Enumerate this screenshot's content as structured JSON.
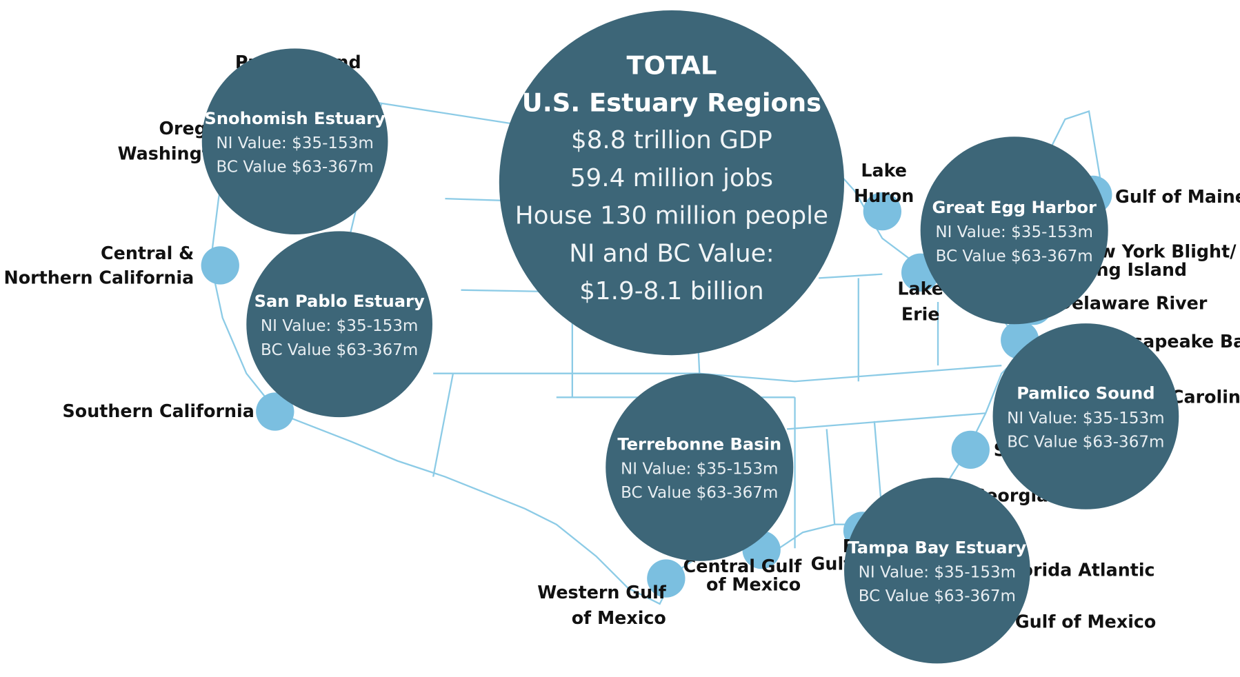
{
  "total": {
    "title": "TOTAL",
    "subtitle": "U.S. Estuary Regions",
    "lines": [
      "$8.8 trillion GDP",
      "59.4 million jobs",
      "House 130 million people",
      "NI and BC Value:",
      "$1.9-8.1 billion"
    ]
  },
  "regions": [
    {
      "lines": [
        "Puget Sound"
      ]
    },
    {
      "lines": [
        "Oregon/",
        "Washington"
      ]
    },
    {
      "lines": [
        "Central &",
        "Northern California"
      ]
    },
    {
      "lines": [
        "Southern California"
      ]
    },
    {
      "lines": [
        "Western Gulf",
        "of Mexico"
      ]
    },
    {
      "lines": [
        "Central Gulf",
        "of Mexico"
      ]
    },
    {
      "lines": [
        "Florida",
        "Gulf"
      ]
    },
    {
      "lines": [
        "Florida Atlantic"
      ]
    },
    {
      "lines": [
        "Gulf of Mexico"
      ]
    },
    {
      "lines": [
        "Georgia"
      ]
    },
    {
      "lines": [
        "South Carolina"
      ]
    },
    {
      "lines": [
        "North Carolina"
      ]
    },
    {
      "lines": [
        "Chesapeake Bay"
      ]
    },
    {
      "lines": [
        "Delaware River"
      ]
    },
    {
      "lines": [
        "New York Blight/",
        "Long Island"
      ]
    },
    {
      "lines": [
        "Lake",
        "Erie"
      ]
    },
    {
      "lines": [
        "Lake",
        "Huron"
      ]
    },
    {
      "lines": [
        "Gulf of Maine"
      ]
    }
  ],
  "estuaries": [
    {
      "name": "Snohomish Estuary",
      "ni": "NI Value: $35-153m",
      "bc": "BC Value $63-367m"
    },
    {
      "name": "San Pablo Estuary",
      "ni": "NI Value: $35-153m",
      "bc": "BC Value $63-367m"
    },
    {
      "name": "Terrebonne Basin",
      "ni": "NI Value: $35-153m",
      "bc": "BC Value $63-367m"
    },
    {
      "name": "Great Egg Harbor",
      "ni": "NI Value: $35-153m",
      "bc": "BC Value $63-367m"
    },
    {
      "name": "Pamlico Sound",
      "ni": "NI Value: $35-153m",
      "bc": "BC Value $63-367m"
    },
    {
      "name": "Tampa Bay Estuary",
      "ni": "NI Value: $35-153m",
      "bc": "BC Value $63-367m"
    }
  ]
}
